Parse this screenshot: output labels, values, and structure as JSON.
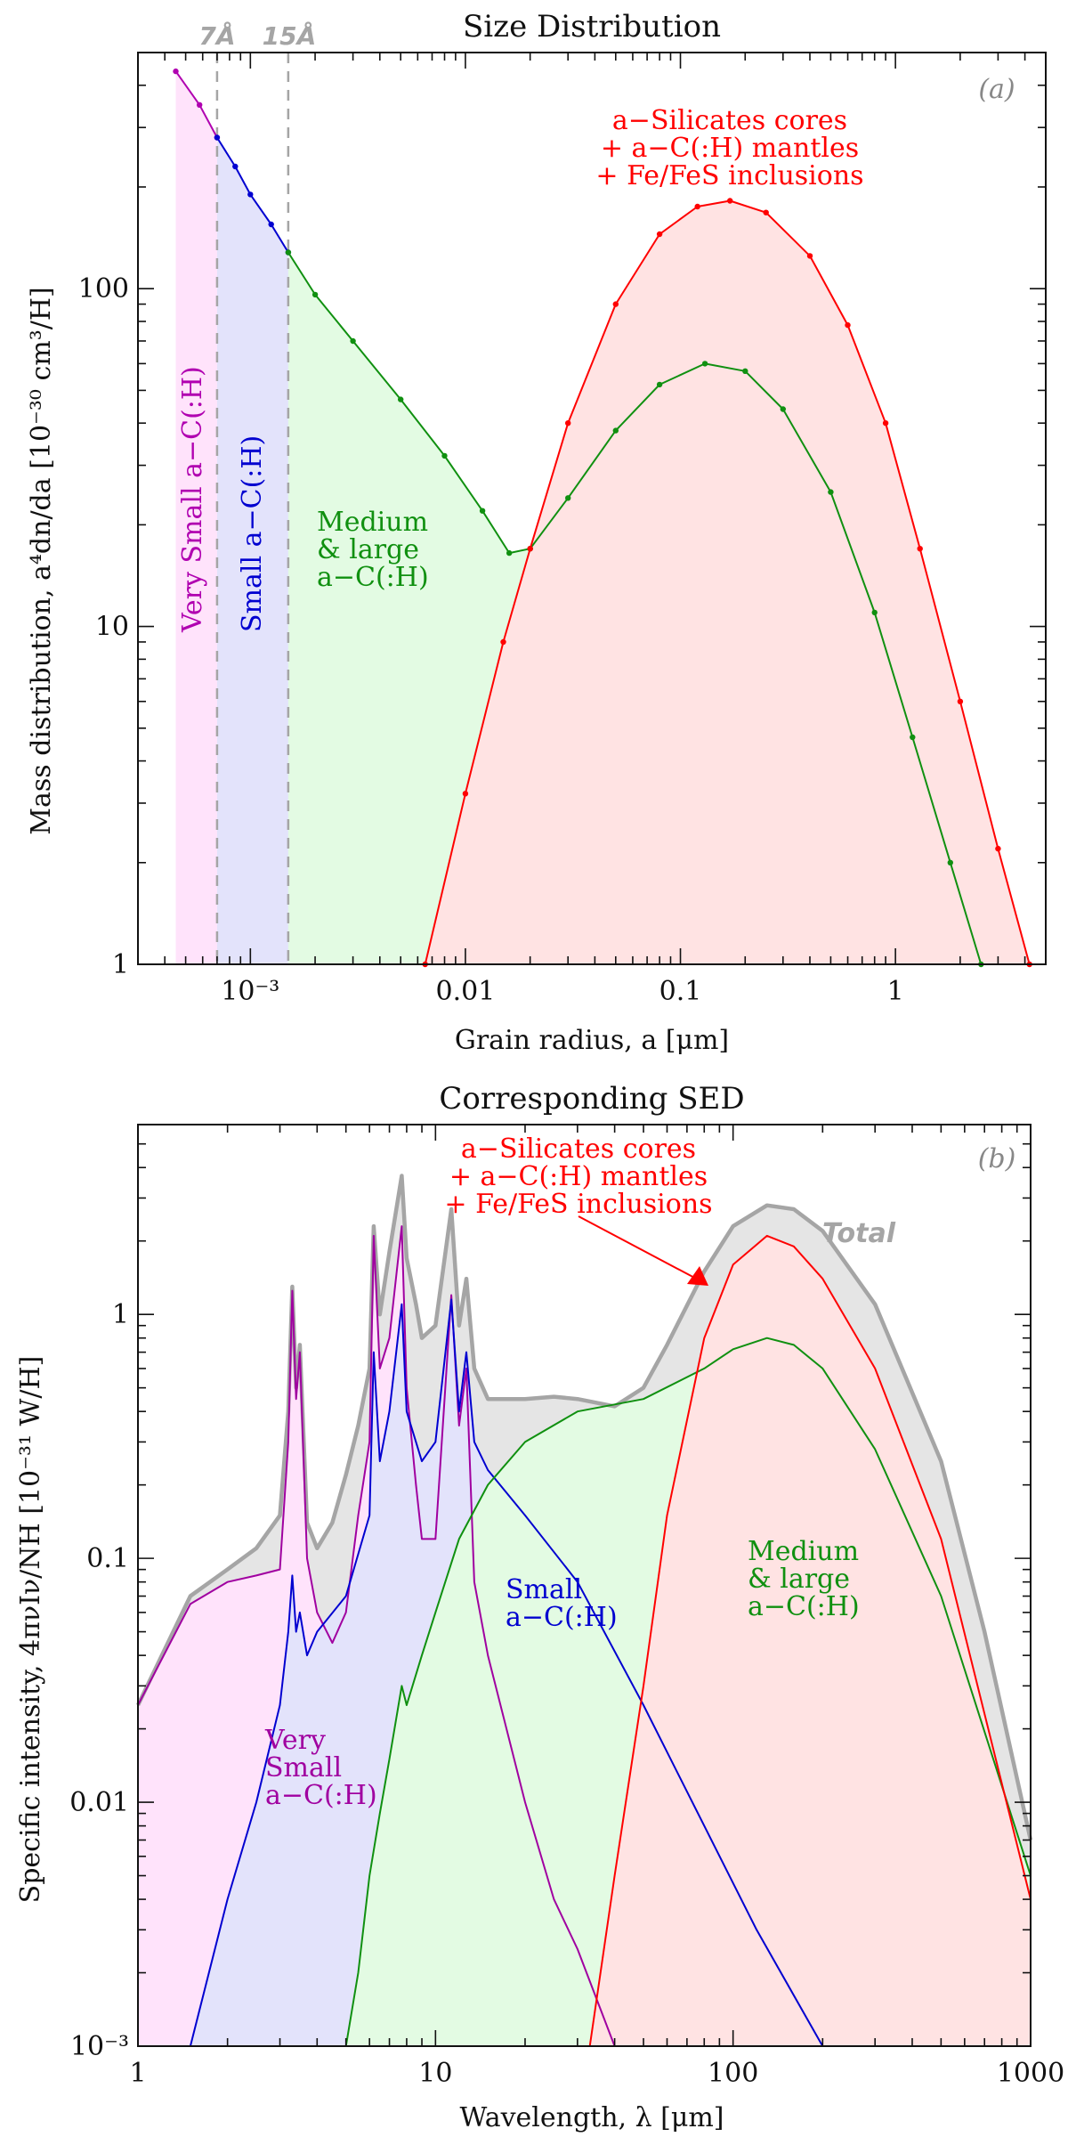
{
  "chart_data": [
    {
      "type": "line",
      "title": "Size Distribution",
      "panel_label": "(a)",
      "xlabel": "Grain radius, a [μm]",
      "ylabel": "Mass distribution, a⁴dn/da [10⁻³⁰ cm³/H]",
      "xscale": "log",
      "yscale": "log",
      "xlim": [
        0.0003,
        5
      ],
      "ylim": [
        1,
        500
      ],
      "xtick_labels": [
        "10⁻³",
        "0.01",
        "0.1",
        "1"
      ],
      "xtick_values": [
        0.001,
        0.01,
        0.1,
        1
      ],
      "ytick_labels": [
        "1",
        "10",
        "100"
      ],
      "ytick_values": [
        1,
        10,
        100
      ],
      "vlines": [
        {
          "label": "7Å",
          "x": 0.0007
        },
        {
          "label": "15Å",
          "x": 0.0015
        }
      ],
      "annotations": [
        {
          "text": "a−Silicates cores",
          "color": "#ff0000"
        },
        {
          "text": "+ a−C(:H) mantles",
          "color": "#ff0000"
        },
        {
          "text": "+ Fe/FeS inclusions",
          "color": "#ff0000"
        },
        {
          "text": "Very Small a−C(:H)",
          "color": "#b000b0"
        },
        {
          "text": "Small a−C(:H)",
          "color": "#0000d0"
        },
        {
          "text": "Medium",
          "color": "#109010"
        },
        {
          "text": "& large",
          "color": "#109010"
        },
        {
          "text": "a−C(:H)",
          "color": "#109010"
        }
      ],
      "series": [
        {
          "name": "Very Small a−C(:H)",
          "color": "#b000b0",
          "fill": "#ffe3fb",
          "x": [
            0.00045,
            0.00058,
            0.0007
          ],
          "y": [
            440,
            350,
            280
          ]
        },
        {
          "name": "Small a−C(:H)",
          "color": "#0000d0",
          "fill": "#e3e3fb",
          "x": [
            0.0007,
            0.00085,
            0.001,
            0.00125,
            0.0015
          ],
          "y": [
            280,
            230,
            190,
            155,
            128
          ]
        },
        {
          "name": "Medium & large a−C(:H)",
          "color": "#109010",
          "fill": "#e3fbe3",
          "x": [
            0.0015,
            0.002,
            0.003,
            0.005,
            0.008,
            0.012,
            0.016,
            0.02,
            0.03,
            0.05,
            0.08,
            0.13,
            0.2,
            0.3,
            0.5,
            0.8,
            1.2,
            1.8,
            2.5
          ],
          "y": [
            128,
            96,
            70,
            47,
            32,
            22,
            16.5,
            17,
            24,
            38,
            52,
            60,
            57,
            44,
            25,
            11,
            4.7,
            2,
            1
          ]
        },
        {
          "name": "a−Silicates cores + a−C(:H) mantles + Fe/FeS inclusions",
          "color": "#ff0000",
          "fill": "#ffe3e3",
          "x": [
            0.0065,
            0.01,
            0.015,
            0.02,
            0.03,
            0.05,
            0.08,
            0.12,
            0.17,
            0.25,
            0.4,
            0.6,
            0.9,
            1.3,
            2,
            3,
            4.2
          ],
          "y": [
            1,
            3.2,
            9,
            17,
            40,
            90,
            145,
            175,
            182,
            168,
            125,
            78,
            40,
            17,
            6,
            2.2,
            1
          ]
        }
      ]
    },
    {
      "type": "line",
      "title": "Corresponding SED",
      "panel_label": "(b)",
      "xlabel": "Wavelength, λ [μm]",
      "ylabel": "Specific intensity, 4πνIν/NH [10⁻³¹ W/H]",
      "xscale": "log",
      "yscale": "log",
      "xlim": [
        1,
        1000
      ],
      "ylim": [
        0.001,
        6
      ],
      "xtick_labels": [
        "1",
        "10",
        "100",
        "1000"
      ],
      "xtick_values": [
        1,
        10,
        100,
        1000
      ],
      "ytick_labels": [
        "10⁻³",
        "0.01",
        "0.1",
        "1"
      ],
      "ytick_values": [
        0.001,
        0.01,
        0.1,
        1
      ],
      "annotations": [
        {
          "text": "a−Silicates cores",
          "color": "#ff0000"
        },
        {
          "text": "+ a−C(:H) mantles",
          "color": "#ff0000"
        },
        {
          "text": "+ Fe/FeS inclusions",
          "color": "#ff0000"
        },
        {
          "text": "Total",
          "color": "#a5a5a5"
        },
        {
          "text": "Medium",
          "color": "#109010"
        },
        {
          "text": "& large",
          "color": "#109010"
        },
        {
          "text": "a−C(:H)",
          "color": "#109010"
        },
        {
          "text": "Small",
          "color": "#0000d0"
        },
        {
          "text": "a−C(:H)",
          "color": "#0000d0"
        },
        {
          "text": "Very",
          "color": "#b000b0"
        },
        {
          "text": "Small",
          "color": "#b000b0"
        },
        {
          "text": "a−C(:H)",
          "color": "#b000b0"
        }
      ],
      "series": [
        {
          "name": "Total",
          "color": "#a5a5a5",
          "fill": "#e5e5e5",
          "x": [
            1,
            1.5,
            2,
            2.5,
            3,
            3.2,
            3.3,
            3.4,
            3.5,
            3.7,
            4,
            4.5,
            5,
            5.5,
            6,
            6.2,
            6.5,
            7,
            7.7,
            8,
            8.6,
            9,
            10,
            11.3,
            12,
            12.7,
            13.5,
            15,
            20,
            25,
            30,
            40,
            50,
            60,
            80,
            100,
            130,
            160,
            200,
            300,
            500,
            700,
            1000
          ],
          "y": [
            0.025,
            0.07,
            0.09,
            0.11,
            0.15,
            0.4,
            1.3,
            0.5,
            0.75,
            0.14,
            0.11,
            0.14,
            0.22,
            0.35,
            0.6,
            2.3,
            1.0,
            1.8,
            3.7,
            1.7,
            1.1,
            0.8,
            0.9,
            2.7,
            0.9,
            1.4,
            0.6,
            0.45,
            0.45,
            0.46,
            0.45,
            0.42,
            0.5,
            0.75,
            1.5,
            2.3,
            2.8,
            2.7,
            2.2,
            1.1,
            0.25,
            0.05,
            0.007
          ]
        },
        {
          "name": "Very Small a−C(:H)",
          "color": "#a000a0",
          "fill": "#ffe3fb",
          "x": [
            1,
            1.5,
            2,
            2.5,
            3,
            3.2,
            3.3,
            3.4,
            3.5,
            3.7,
            4,
            4.5,
            5,
            5.5,
            6,
            6.2,
            6.5,
            7,
            7.7,
            8,
            8.6,
            9,
            10,
            11.3,
            12,
            12.7,
            13.5,
            15,
            20,
            25,
            30,
            40
          ],
          "y": [
            0.025,
            0.065,
            0.08,
            0.085,
            0.09,
            0.3,
            1.25,
            0.45,
            0.7,
            0.1,
            0.06,
            0.045,
            0.06,
            0.15,
            0.3,
            2.1,
            0.6,
            0.8,
            2.3,
            0.5,
            0.2,
            0.12,
            0.12,
            1.2,
            0.35,
            0.6,
            0.08,
            0.04,
            0.01,
            0.004,
            0.0025,
            0.001
          ]
        },
        {
          "name": "Small a−C(:H)",
          "color": "#0000d0",
          "fill": "#e3e3fb",
          "x": [
            1.5,
            2,
            2.5,
            3,
            3.2,
            3.3,
            3.4,
            3.5,
            3.7,
            4,
            5,
            6,
            6.2,
            6.5,
            7,
            7.7,
            8,
            9,
            10,
            11.3,
            12,
            12.7,
            13.5,
            15,
            20,
            30,
            50,
            80,
            120,
            200
          ],
          "y": [
            0.001,
            0.004,
            0.01,
            0.025,
            0.05,
            0.085,
            0.05,
            0.06,
            0.04,
            0.05,
            0.07,
            0.15,
            0.7,
            0.25,
            0.4,
            1.1,
            0.4,
            0.25,
            0.3,
            1.15,
            0.4,
            0.7,
            0.3,
            0.23,
            0.15,
            0.08,
            0.025,
            0.008,
            0.003,
            0.001
          ]
        },
        {
          "name": "Medium & large a−C(:H)",
          "color": "#109010",
          "fill": "#e3fbe3",
          "x": [
            5,
            5.5,
            6,
            6.5,
            7,
            7.7,
            8,
            9,
            10,
            12,
            15,
            20,
            30,
            50,
            80,
            100,
            130,
            160,
            200,
            300,
            500,
            1000
          ],
          "y": [
            0.001,
            0.002,
            0.005,
            0.009,
            0.015,
            0.03,
            0.025,
            0.04,
            0.06,
            0.12,
            0.2,
            0.3,
            0.4,
            0.45,
            0.6,
            0.72,
            0.8,
            0.75,
            0.6,
            0.28,
            0.07,
            0.005
          ]
        },
        {
          "name": "a−Silicates cores + a−C(:H) mantles + Fe/FeS inclusions",
          "color": "#ff0000",
          "fill": "#ffe3e3",
          "x": [
            33,
            40,
            50,
            60,
            80,
            100,
            130,
            160,
            200,
            300,
            500,
            1000
          ],
          "y": [
            0.001,
            0.005,
            0.03,
            0.15,
            0.8,
            1.6,
            2.1,
            1.9,
            1.4,
            0.6,
            0.12,
            0.004
          ]
        }
      ]
    }
  ]
}
